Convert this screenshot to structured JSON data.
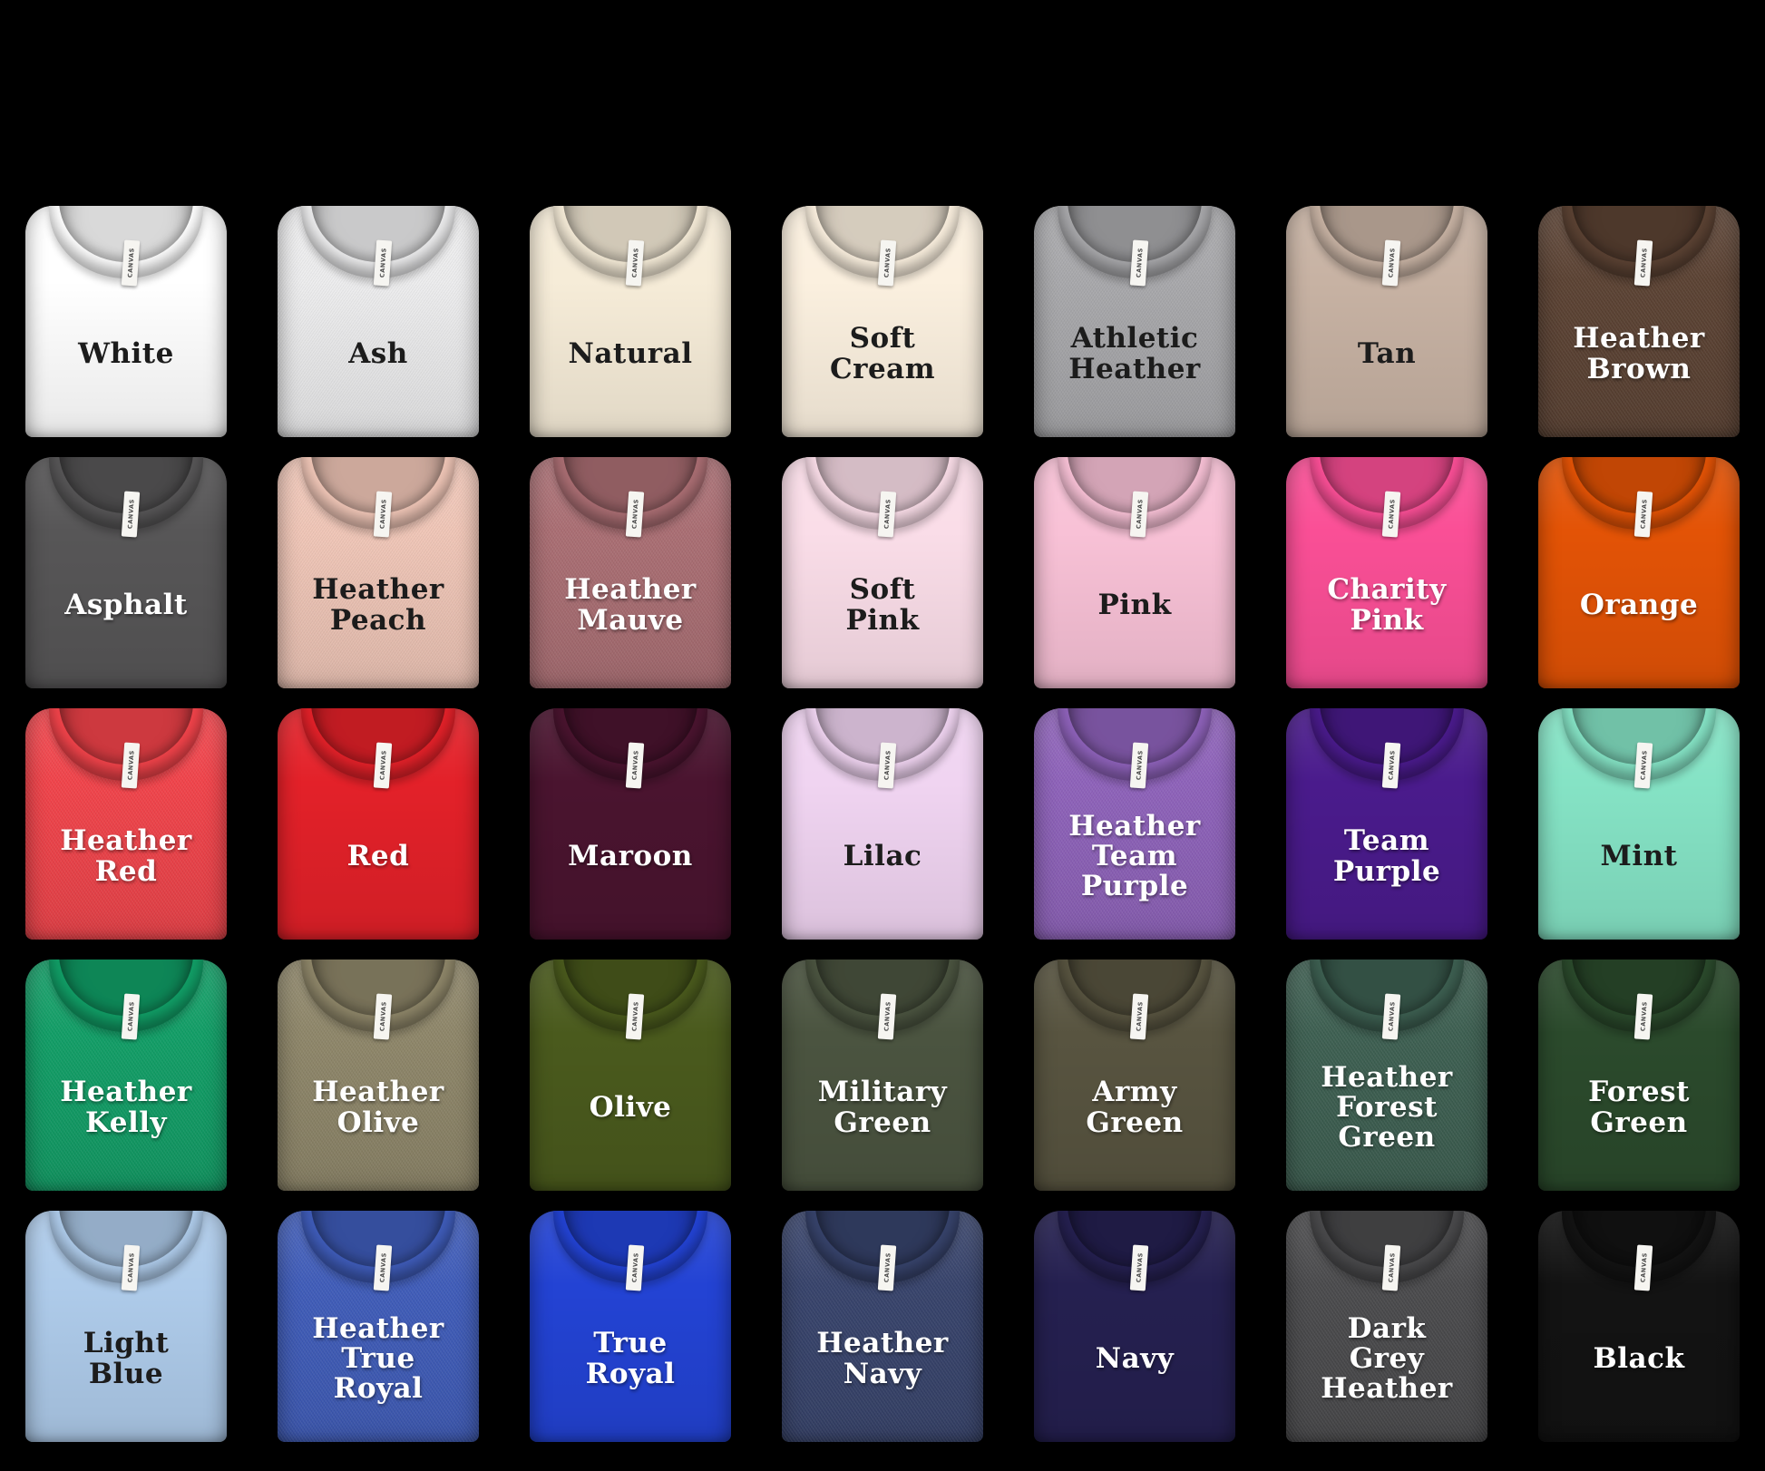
{
  "page": {
    "background_color": "#000000"
  },
  "brand_tag": "CANVAS",
  "grid": {
    "rows": 5,
    "columns": 7
  },
  "shirts": [
    {
      "name": "White",
      "color": "#ffffff",
      "text_color": "#1c1c1c",
      "heather": false
    },
    {
      "name": "Ash",
      "color": "#ededee",
      "text_color": "#1c1c1c",
      "heather": true
    },
    {
      "name": "Natural",
      "color": "#f6ecd8",
      "text_color": "#1c1c1c",
      "heather": false
    },
    {
      "name": "Soft Cream",
      "color": "#fbf0df",
      "text_color": "#1c1c1c",
      "heather": false
    },
    {
      "name": "Athletic Heather",
      "color": "#a8a8ab",
      "text_color": "#1c1c1c",
      "heather": true
    },
    {
      "name": "Tan",
      "color": "#c7b2a3",
      "text_color": "#1c1c1c",
      "heather": false
    },
    {
      "name": "Heather Brown",
      "color": "#5b4233",
      "text_color": "#ffffff",
      "heather": true
    },
    {
      "name": "Asphalt",
      "color": "#575657",
      "text_color": "#ffffff",
      "heather": false
    },
    {
      "name": "Heather Peach",
      "color": "#f0c6b7",
      "text_color": "#1c1c1c",
      "heather": true
    },
    {
      "name": "Heather Mauve",
      "color": "#aa6e73",
      "text_color": "#ffffff",
      "heather": true
    },
    {
      "name": "Soft Pink",
      "color": "#fadde8",
      "text_color": "#1c1c1c",
      "heather": false
    },
    {
      "name": "Pink",
      "color": "#f8c1d6",
      "text_color": "#1c1c1c",
      "heather": false
    },
    {
      "name": "Charity Pink",
      "color": "#fa4f96",
      "text_color": "#ffffff",
      "heather": false
    },
    {
      "name": "Orange",
      "color": "#e35306",
      "text_color": "#ffffff",
      "heather": false
    },
    {
      "name": "Heather Red",
      "color": "#f1434a",
      "text_color": "#ffffff",
      "heather": true
    },
    {
      "name": "Red",
      "color": "#e32129",
      "text_color": "#ffffff",
      "heather": false
    },
    {
      "name": "Maroon",
      "color": "#4a142f",
      "text_color": "#ffffff",
      "heather": false
    },
    {
      "name": "Lilac",
      "color": "#f0d4f1",
      "text_color": "#1c1c1c",
      "heather": false
    },
    {
      "name": "Heather Team Purple",
      "color": "#8e62ba",
      "text_color": "#ffffff",
      "heather": true
    },
    {
      "name": "Team Purple",
      "color": "#4a1b8c",
      "text_color": "#ffffff",
      "heather": false
    },
    {
      "name": "Mint",
      "color": "#85e3c5",
      "text_color": "#1c1c1c",
      "heather": false
    },
    {
      "name": "Heather Kelly",
      "color": "#119e66",
      "text_color": "#ffffff",
      "heather": true
    },
    {
      "name": "Heather Olive",
      "color": "#8e8669",
      "text_color": "#ffffff",
      "heather": true
    },
    {
      "name": "Olive",
      "color": "#4a5a1d",
      "text_color": "#ffffff",
      "heather": false
    },
    {
      "name": "Military Green",
      "color": "#4b5440",
      "text_color": "#ffffff",
      "heather": false
    },
    {
      "name": "Army Green",
      "color": "#585440",
      "text_color": "#ffffff",
      "heather": false
    },
    {
      "name": "Heather Forest Green",
      "color": "#3d5f51",
      "text_color": "#ffffff",
      "heather": true
    },
    {
      "name": "Forest Green",
      "color": "#2b4a2c",
      "text_color": "#ffffff",
      "heather": false
    },
    {
      "name": "Light Blue",
      "color": "#aecbea",
      "text_color": "#1c1c1c",
      "heather": false
    },
    {
      "name": "Heather True Royal",
      "color": "#3f5cb9",
      "text_color": "#ffffff",
      "heather": true
    },
    {
      "name": "True Royal",
      "color": "#2343d4",
      "text_color": "#ffffff",
      "heather": false
    },
    {
      "name": "Heather Navy",
      "color": "#37436b",
      "text_color": "#ffffff",
      "heather": true
    },
    {
      "name": "Navy",
      "color": "#252050",
      "text_color": "#ffffff",
      "heather": false
    },
    {
      "name": "Dark Grey Heather",
      "color": "#4a4a4c",
      "text_color": "#ffffff",
      "heather": true
    },
    {
      "name": "Black",
      "color": "#131313",
      "text_color": "#ffffff",
      "heather": false
    }
  ]
}
